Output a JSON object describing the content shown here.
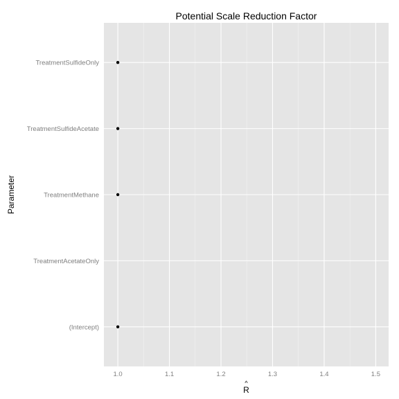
{
  "chart_data": {
    "type": "scatter",
    "title": "Potential Scale Reduction Factor",
    "xlabel": "R",
    "xlabel_accent": "^",
    "ylabel": "Parameter",
    "categories": [
      "(Intercept)",
      "TreatmentAcetateOnly",
      "TreatmentMethane",
      "TreatmentSulfideAcetate",
      "TreatmentSulfideOnly"
    ],
    "series": [
      {
        "points": [
          {
            "category": "(Intercept)",
            "x": 1.0
          },
          {
            "category": "TreatmentMethane",
            "x": 1.0
          },
          {
            "category": "TreatmentSulfideAcetate",
            "x": 1.0
          },
          {
            "category": "TreatmentSulfideOnly",
            "x": 1.0
          }
        ]
      }
    ],
    "xlim": [
      0.973,
      1.525
    ],
    "xticks": [
      1.0,
      1.1,
      1.2,
      1.3,
      1.4,
      1.5
    ],
    "xtick_labels": [
      "1.0",
      "1.1",
      "1.2",
      "1.3",
      "1.4",
      "1.5"
    ],
    "grid": true,
    "colors": {
      "panel": "#e5e5e5",
      "grid_major": "#ffffff",
      "grid_minor": "#f2f2f2",
      "point": "#000000",
      "tick_text": "#7f7f7f"
    }
  }
}
